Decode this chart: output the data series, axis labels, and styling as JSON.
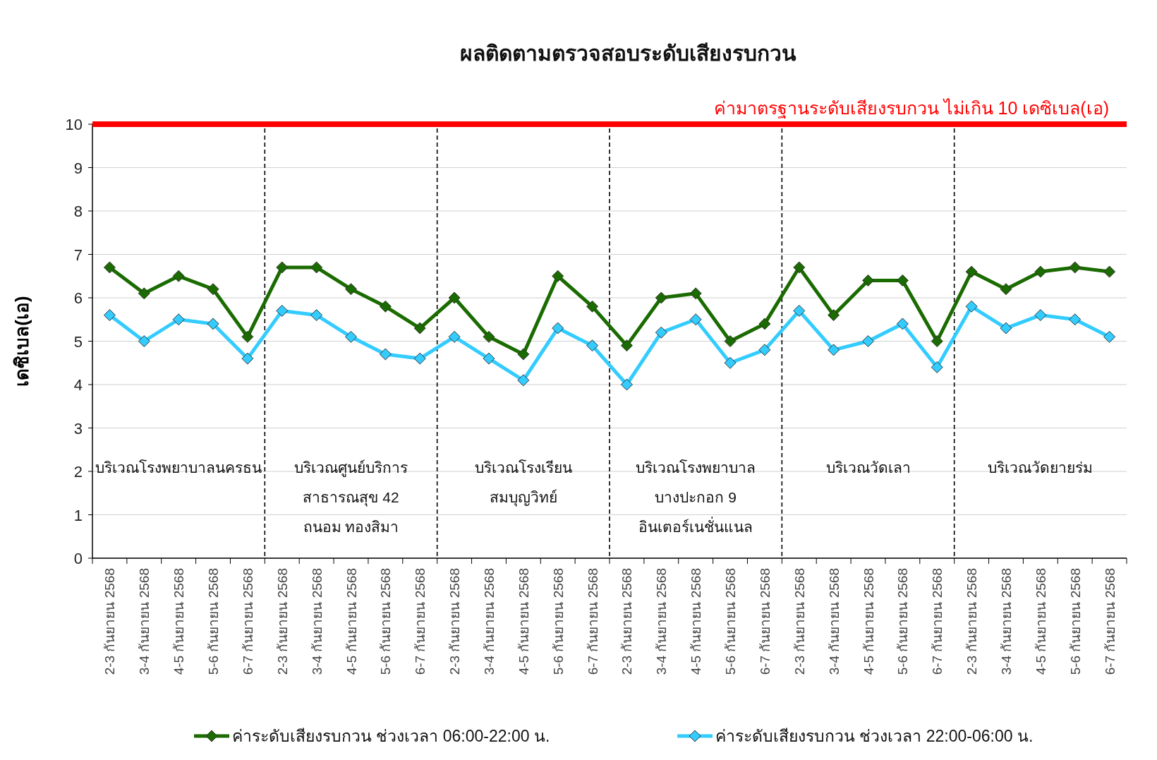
{
  "chart_data": {
    "type": "line",
    "title": "ผลติดตามตรวจสอบระดับเสียงรบกวน",
    "ylabel": "เดซิเบล(เอ)",
    "categories": [
      "2-3 กันยายน 2568",
      "3-4 กันยายน 2568",
      "4-5 กันยายน 2568",
      "5-6 กันยายน 2568",
      "6-7 กันยายน 2568",
      "2-3 กันยายน 2568",
      "3-4 กันยายน 2568",
      "4-5 กันยายน 2568",
      "5-6 กันยายน 2568",
      "6-7 กันยายน 2568",
      "2-3 กันยายน 2568",
      "3-4 กันยายน 2568",
      "4-5 กันยายน 2568",
      "5-6 กันยายน 2568",
      "6-7 กันยายน 2568",
      "2-3 กันยายน 2568",
      "3-4 กันยายน 2568",
      "4-5 กันยายน 2568",
      "5-6 กันยายน 2568",
      "6-7 กันยายน 2568",
      "2-3 กันยายน 2568",
      "3-4 กันยายน 2568",
      "4-5 กันยายน 2568",
      "5-6 กันยายน 2568",
      "6-7 กันยายน 2568",
      "2-3 กันยายน 2568",
      "3-4 กันยายน 2568",
      "4-5 กันยายน 2568",
      "5-6 กันยายน 2568",
      "6-7 กันยายน 2568"
    ],
    "series": [
      {
        "name": "ค่าระดับเสียงรบกวน ช่วงเวลา 06:00-22:00  น.",
        "color": "#1a6b00",
        "values": [
          6.7,
          6.1,
          6.5,
          6.2,
          5.1,
          6.7,
          6.7,
          6.2,
          5.8,
          5.3,
          6.0,
          5.1,
          4.7,
          6.5,
          5.8,
          4.9,
          6.0,
          6.1,
          5.0,
          5.4,
          6.7,
          5.6,
          6.4,
          6.4,
          5.0,
          6.6,
          6.2,
          6.6,
          6.7,
          6.6
        ]
      },
      {
        "name": "ค่าระดับเสียงรบกวน ช่วงเวลา 22:00-06:00  น.",
        "color": "#33ccff",
        "values": [
          5.6,
          5.0,
          5.5,
          5.4,
          4.6,
          5.7,
          5.6,
          5.1,
          4.7,
          4.6,
          5.1,
          4.6,
          4.1,
          5.3,
          4.9,
          4.0,
          5.2,
          5.5,
          4.5,
          4.8,
          5.7,
          4.8,
          5.0,
          5.4,
          4.4,
          5.8,
          5.3,
          5.6,
          5.5,
          5.1
        ]
      }
    ],
    "ylim": [
      0,
      10
    ],
    "yticks": [
      0,
      1,
      2,
      3,
      4,
      5,
      6,
      7,
      8,
      9,
      10
    ],
    "grid": "y",
    "legend": "bottom",
    "marker": "diamond",
    "line_style": "solid",
    "ref_lines": [
      {
        "axis": "y",
        "value": 10,
        "label": "ค่ามาตรฐานระดับเสียงรบกวน ไม่เกิน 10 เดซิเบล(เอ)",
        "color": "#ff0000",
        "line_style": "solid"
      }
    ],
    "annotations": [
      "บริเวณโรงพยาบาลนครธน",
      "บริเวณศูนย์บริการ\nสาธารณสุข 42\nถนอม ทองสิมา",
      "บริเวณโรงเรียน\nสมบุญวิทย์",
      "บริเวณโรงพยาบาล\nบางปะกอก 9\nอินเตอร์เนชั่นแนล",
      "บริเวณวัดเลา",
      "บริเวณวัดยายร่ม"
    ]
  }
}
